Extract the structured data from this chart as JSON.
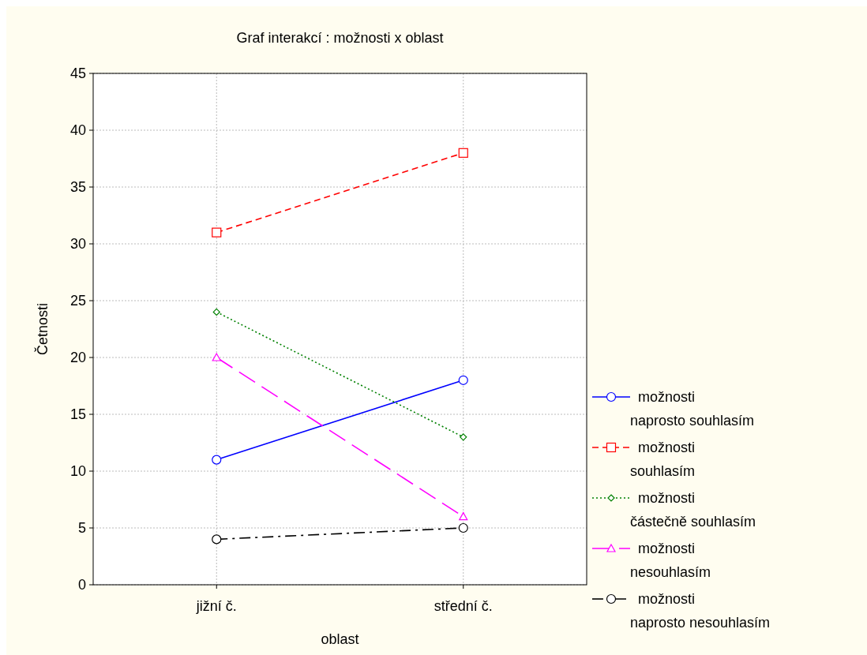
{
  "chart_data": {
    "type": "line",
    "title": "Graf interakcí : možnosti x oblast",
    "xlabel": "oblast",
    "ylabel": "Četnosti",
    "categories": [
      "jižní č.",
      "střední č."
    ],
    "series": [
      {
        "name": "možnosti naprosto souhlasím",
        "color": "#0000ff",
        "values": [
          11,
          18
        ],
        "marker": "circle",
        "line_style": "solid"
      },
      {
        "name": "možnosti souhlasím",
        "color": "#ff0000",
        "values": [
          31,
          38
        ],
        "marker": "square",
        "line_style": "dashed"
      },
      {
        "name": "možnosti částečně souhlasím",
        "color": "#008000",
        "values": [
          24,
          13
        ],
        "marker": "diamond",
        "line_style": "dotted"
      },
      {
        "name": "možnosti nesouhlasím",
        "color": "#ff00ff",
        "values": [
          20,
          6
        ],
        "marker": "triangle",
        "line_style": "longdash"
      },
      {
        "name": "možnosti naprosto nesouhlasím",
        "color": "#000000",
        "values": [
          4,
          5
        ],
        "marker": "circle",
        "line_style": "dashdot"
      }
    ],
    "ylim": [
      0,
      45
    ],
    "yticks": [
      0,
      5,
      10,
      15,
      20,
      25,
      30,
      35,
      40,
      45
    ],
    "grid": true,
    "legend": "right"
  }
}
